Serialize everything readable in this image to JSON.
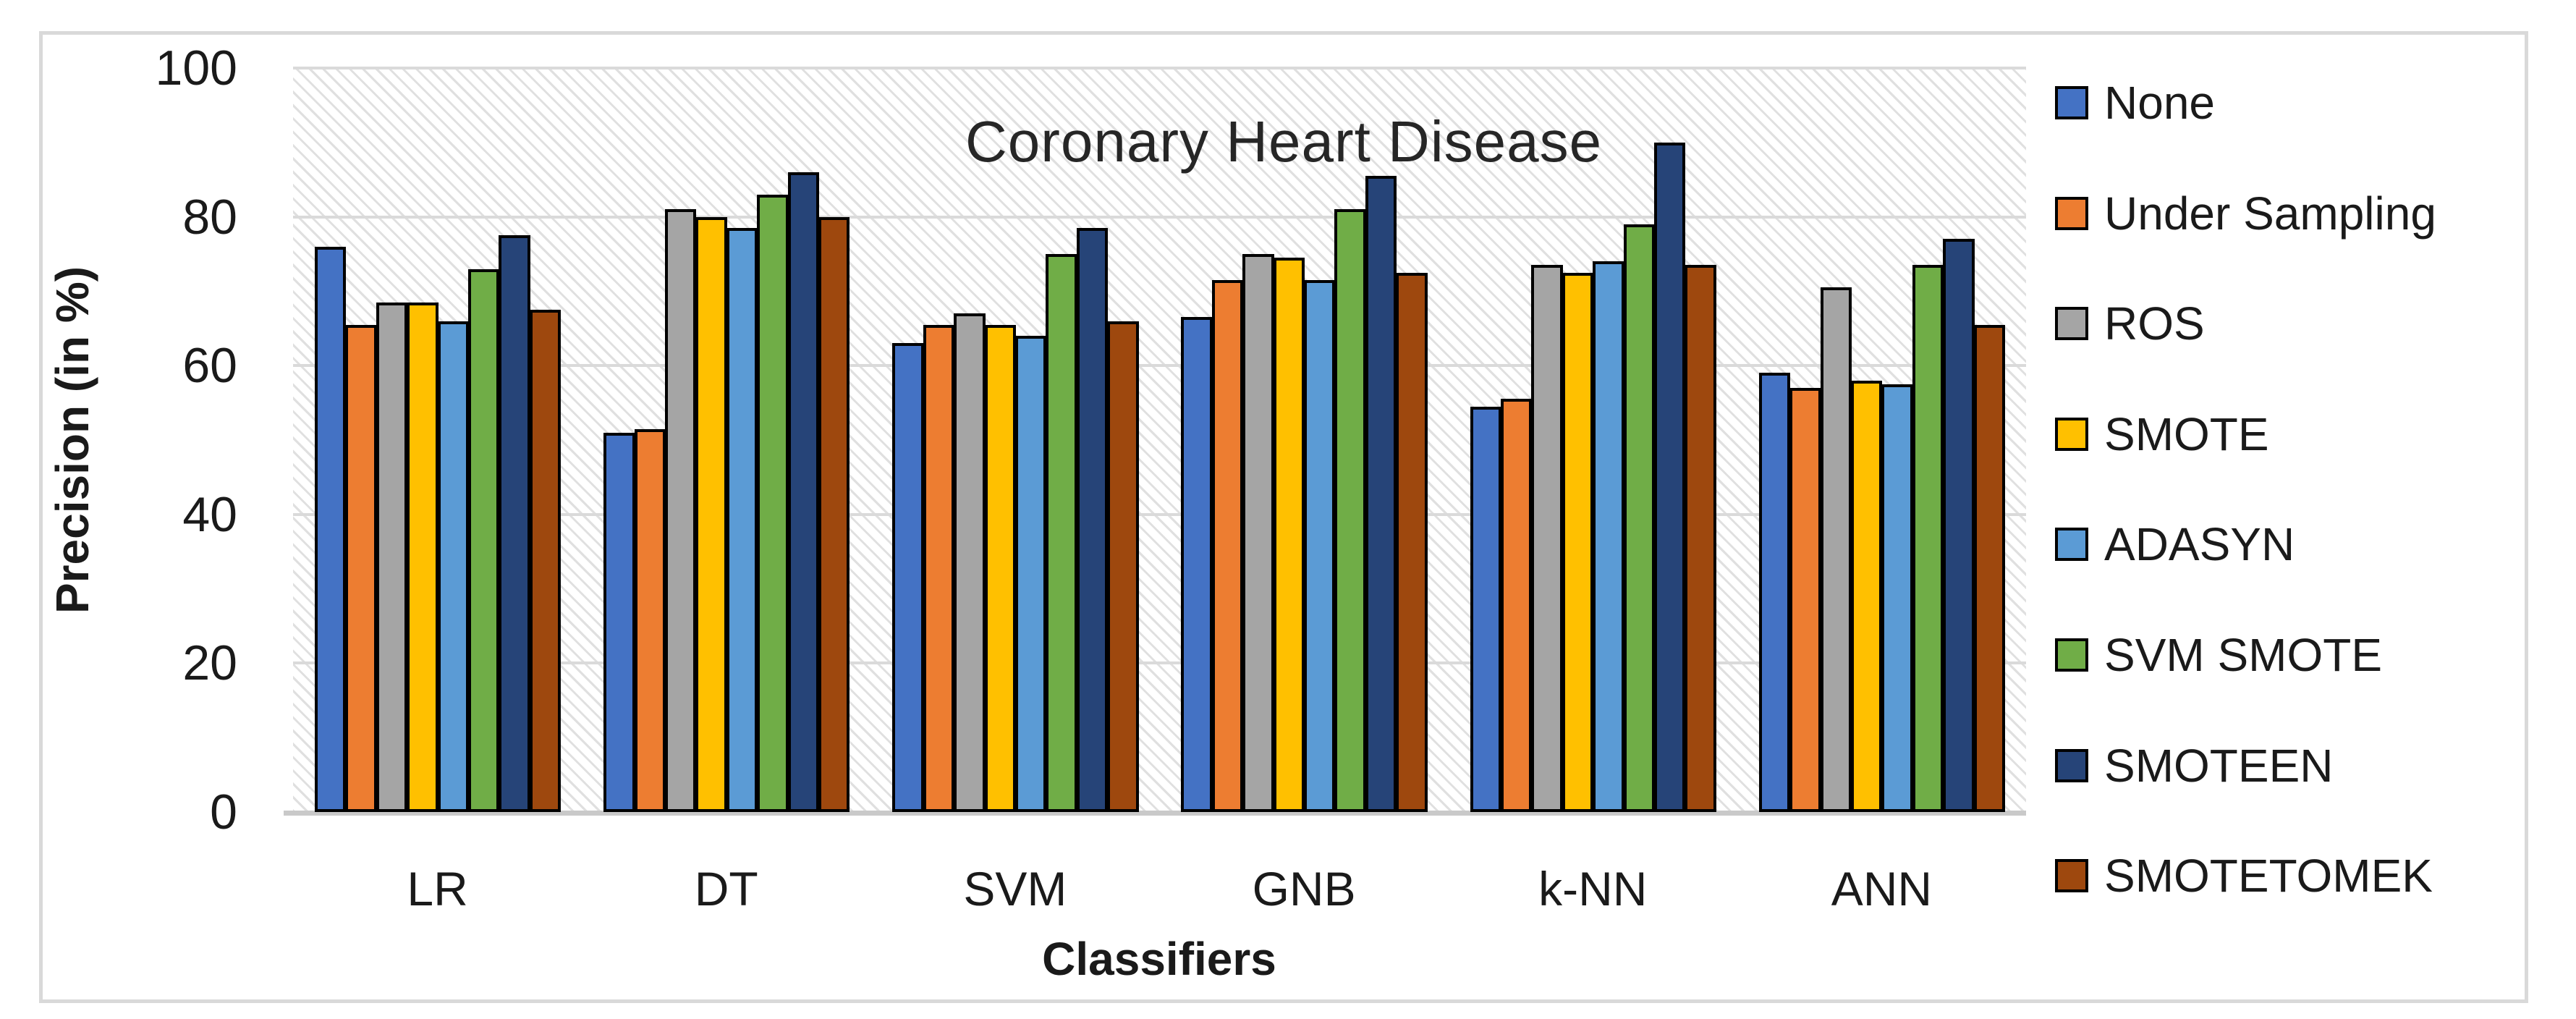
{
  "figure": {
    "border_color": "#d9d9d9",
    "background": "#ffffff",
    "plot_hatch": "light-diagonal-gray"
  },
  "chart_data": {
    "type": "bar",
    "title": "Coronary Heart Disease",
    "xlabel": "Classifiers",
    "ylabel": "Precision  (in %)",
    "categories": [
      "LR",
      "DT",
      "SVM",
      "GNB",
      "k-NN",
      "ANN"
    ],
    "series": [
      {
        "name": "None",
        "color": "#4472C4",
        "values": [
          76,
          51,
          63,
          66.5,
          54.5,
          59
        ]
      },
      {
        "name": "Under Sampling",
        "color": "#ED7D31",
        "values": [
          65.5,
          51.5,
          65.5,
          71.5,
          55.5,
          57
        ]
      },
      {
        "name": "ROS",
        "color": "#A5A5A5",
        "values": [
          68.5,
          81,
          67,
          75,
          73.5,
          70.5
        ]
      },
      {
        "name": "SMOTE",
        "color": "#FFC000",
        "values": [
          68.5,
          80,
          65.5,
          74.5,
          72.5,
          58
        ]
      },
      {
        "name": "ADASYN",
        "color": "#5B9BD5",
        "values": [
          66,
          78.5,
          64,
          71.5,
          74,
          57.5
        ]
      },
      {
        "name": "SVM SMOTE",
        "color": "#70AD47",
        "values": [
          73,
          83,
          75,
          81,
          79,
          73.5
        ]
      },
      {
        "name": "SMOTEEN",
        "color": "#264478",
        "values": [
          77.5,
          86,
          78.5,
          85.5,
          90,
          77
        ]
      },
      {
        "name": "SMOTETOMEK",
        "color": "#9E480E",
        "values": [
          67.5,
          80,
          66,
          72.5,
          73.5,
          65.5
        ]
      }
    ],
    "ylim": [
      0,
      100
    ],
    "yticks": [
      0,
      20,
      40,
      60,
      80,
      100
    ],
    "grid": true,
    "bar_border_color": "#000000",
    "legend_position": "right"
  }
}
